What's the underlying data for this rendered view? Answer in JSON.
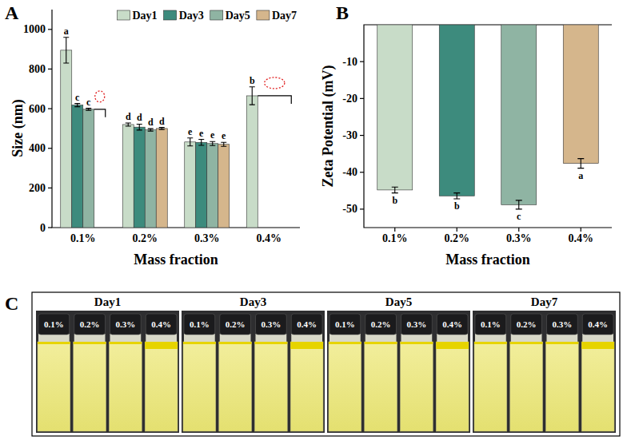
{
  "chart_data": [
    {
      "panel_label": "A",
      "type": "bar",
      "y_label": "Size (nm)",
      "x_label": "Mass fraction",
      "categories": [
        "0.1%",
        "0.2%",
        "0.3%",
        "0.4%"
      ],
      "series": [
        {
          "name": "Day1",
          "color": "#c8dcc8",
          "values": [
            895,
            520,
            432,
            665
          ],
          "errors": [
            65,
            8,
            20,
            45
          ],
          "letters": [
            "a",
            "d",
            "e",
            "b"
          ]
        },
        {
          "name": "Day3",
          "color": "#3d8b7d",
          "values": [
            618,
            507,
            430,
            null
          ],
          "errors": [
            8,
            15,
            15,
            null
          ],
          "letters": [
            "c",
            "d",
            "e",
            null
          ]
        },
        {
          "name": "Day5",
          "color": "#8fb4a3",
          "values": [
            597,
            493,
            424,
            null
          ],
          "errors": [
            5,
            6,
            10,
            null
          ],
          "letters": [
            "c",
            "d",
            "e",
            null
          ]
        },
        {
          "name": "Day7",
          "color": "#d5b68c",
          "values": [
            null,
            500,
            420,
            null
          ],
          "errors": [
            null,
            5,
            10,
            null
          ],
          "letters": [
            null,
            "d",
            "e",
            null
          ]
        }
      ],
      "ylim": [
        0,
        1100
      ],
      "yticks": [
        0,
        200,
        400,
        600,
        800,
        1000
      ],
      "legend": "top-right"
    },
    {
      "panel_label": "B",
      "type": "bar",
      "y_label": "Zeta Potential (mV)",
      "x_label": "Mass fraction",
      "categories": [
        "0.1%",
        "0.2%",
        "0.3%",
        "0.4%"
      ],
      "values": [
        -44.8,
        -46.4,
        -48.8,
        -37.6
      ],
      "errors": [
        0.8,
        0.8,
        1.2,
        1.3
      ],
      "letters": [
        "b",
        "b",
        "c",
        "a"
      ],
      "colors": [
        "#c8dcc8",
        "#3d8b7d",
        "#8fb4a3",
        "#d5b68c"
      ],
      "ylim": [
        -55,
        0
      ],
      "yticks": [
        -50,
        -40,
        -30,
        -20,
        -10
      ]
    }
  ],
  "photos": {
    "panel_label": "C",
    "images": [
      {
        "title": "Day1",
        "vials": [
          "0.1%",
          "0.2%",
          "0.3%",
          "0.4%"
        ]
      },
      {
        "title": "Day3",
        "vials": [
          "0.1%",
          "0.2%",
          "0.3%",
          "0.4%"
        ]
      },
      {
        "title": "Day5",
        "vials": [
          "0.1%",
          "0.2%",
          "0.3%",
          "0.4%"
        ]
      },
      {
        "title": "Day7",
        "vials": [
          "0.1%",
          "0.2%",
          "0.3%",
          "0.4%"
        ]
      }
    ]
  }
}
